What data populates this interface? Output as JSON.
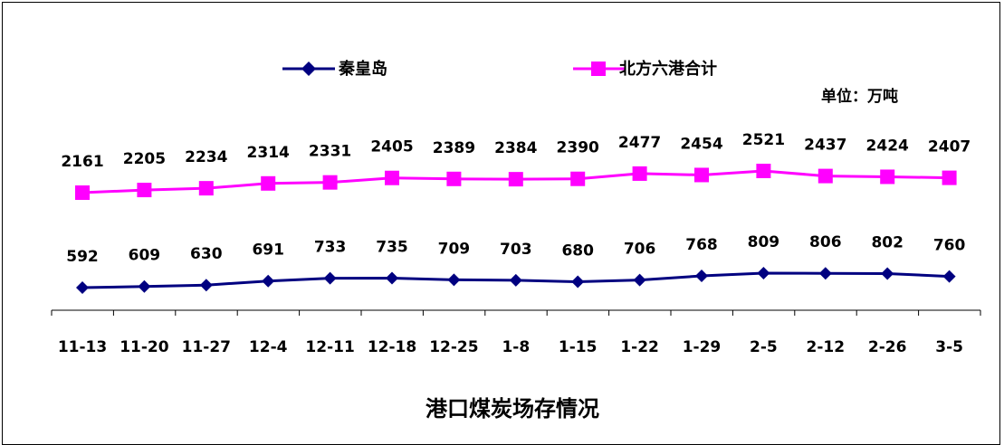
{
  "chart_data": {
    "type": "line",
    "title": "港口煤炭场存情况",
    "unit": "单位：万吨",
    "categories": [
      "11-13",
      "11-20",
      "11-27",
      "12-4",
      "12-11",
      "12-18",
      "12-25",
      "1-8",
      "1-15",
      "1-22",
      "1-29",
      "2-5",
      "2-12",
      "2-26",
      "3-5"
    ],
    "series": [
      {
        "name": "秦皇岛",
        "color": "#000080",
        "marker": "diamond",
        "values": [
          592,
          609,
          630,
          691,
          733,
          735,
          709,
          703,
          680,
          706,
          768,
          809,
          806,
          802,
          760
        ]
      },
      {
        "name": "北方六港合计",
        "color": "#ff00ff",
        "marker": "square",
        "values": [
          2161,
          2205,
          2234,
          2314,
          2331,
          2405,
          2389,
          2384,
          2390,
          2477,
          2454,
          2521,
          2437,
          2424,
          2407
        ]
      }
    ],
    "legend_position": "top",
    "grid": false,
    "y_axis_visible": false,
    "axis_break": true
  }
}
